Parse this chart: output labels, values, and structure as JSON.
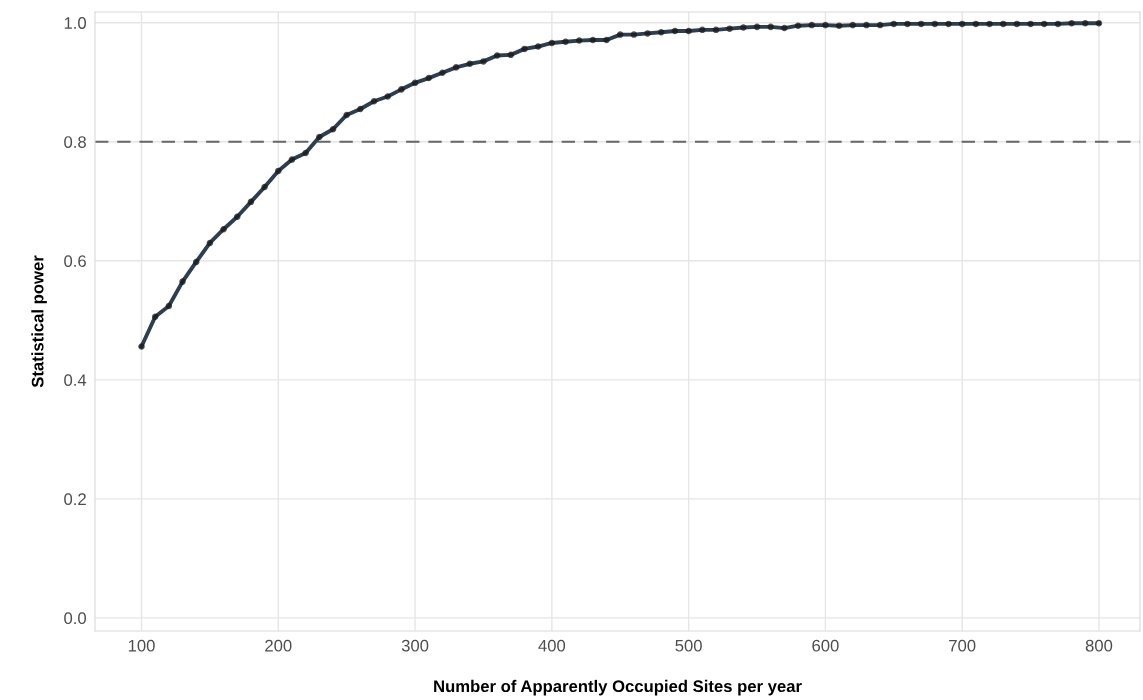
{
  "chart_data": {
    "type": "line",
    "xlabel": "Number of Apparently Occupied Sites per year",
    "ylabel": "Statistical power",
    "x": [
      100,
      110,
      120,
      130,
      140,
      150,
      160,
      170,
      180,
      190,
      200,
      210,
      220,
      230,
      240,
      250,
      260,
      270,
      280,
      290,
      300,
      310,
      320,
      330,
      340,
      350,
      360,
      370,
      380,
      390,
      400,
      410,
      420,
      430,
      440,
      450,
      460,
      470,
      480,
      490,
      500,
      510,
      520,
      530,
      540,
      550,
      560,
      570,
      580,
      590,
      600,
      610,
      620,
      630,
      640,
      650,
      660,
      670,
      680,
      690,
      700,
      710,
      720,
      730,
      740,
      750,
      760,
      770,
      780,
      790,
      800
    ],
    "series": [
      {
        "color": "#2c3e50",
        "values": [
          0.456,
          0.506,
          0.524,
          0.565,
          0.598,
          0.63,
          0.653,
          0.674,
          0.699,
          0.724,
          0.751,
          0.77,
          0.781,
          0.808,
          0.821,
          0.845,
          0.855,
          0.868,
          0.876,
          0.888,
          0.899,
          0.907,
          0.916,
          0.925,
          0.931,
          0.935,
          0.945,
          0.946,
          0.956,
          0.96,
          0.966,
          0.968,
          0.97,
          0.971,
          0.971,
          0.98,
          0.98,
          0.982,
          0.984,
          0.986,
          0.986,
          0.988,
          0.988,
          0.99,
          0.992,
          0.993,
          0.993,
          0.991,
          0.995,
          0.996,
          0.996,
          0.995,
          0.996,
          0.996,
          0.996,
          0.998,
          0.998,
          0.998,
          0.998,
          0.998,
          0.998,
          0.998,
          0.998,
          0.998,
          0.998,
          0.998,
          0.998,
          0.998,
          0.999,
          0.999,
          0.999
        ]
      }
    ],
    "xlim": [
      66,
      830
    ],
    "ylim": [
      -0.022,
      1.018
    ],
    "xticks": [
      100,
      200,
      300,
      400,
      500,
      600,
      700,
      800
    ],
    "yticks": [
      {
        "value": 0,
        "label": "0.0"
      },
      {
        "value": 0.2,
        "label": "0.2"
      },
      {
        "value": 0.4,
        "label": "0.4"
      },
      {
        "value": 0.6,
        "label": "0.6"
      },
      {
        "value": 0.8,
        "label": "0.8"
      },
      {
        "value": 1,
        "label": "1.0"
      }
    ],
    "ref_lines": [
      {
        "axis": "y",
        "value": 0.8,
        "color": "#666666",
        "line_style": "dashed"
      }
    ],
    "grid": true,
    "marker": "circle",
    "line_style": "solid"
  }
}
